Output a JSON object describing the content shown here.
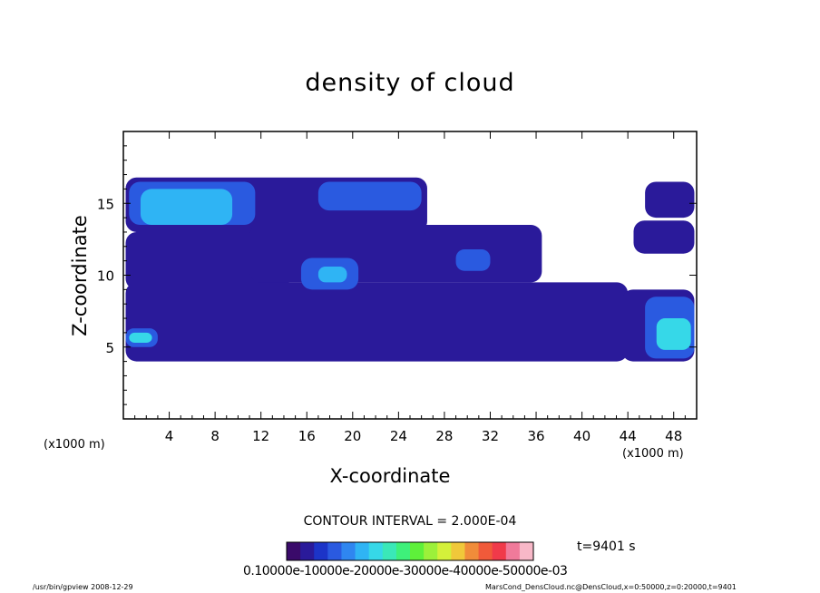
{
  "chart_data": {
    "type": "heatmap",
    "title": "density of cloud",
    "xlabel": "X-coordinate",
    "ylabel": "Z-coordinate",
    "x_unit_label": "(x1000 m)",
    "x_ticks": [
      4,
      8,
      12,
      16,
      20,
      24,
      28,
      32,
      36,
      40,
      44,
      48
    ],
    "y_ticks": [
      5,
      10,
      15
    ],
    "xlim": [
      0,
      50
    ],
    "ylim": [
      0,
      20
    ],
    "contour_interval": "CONTOUR INTERVAL = 2.000E-04",
    "time": "t=9401 s",
    "colorbar": {
      "labels_text": "0.10000e-10000e-20000e-30000e-40000e-50000e-03",
      "colors": [
        "#3a0a6a",
        "#2a1a9a",
        "#1c34c8",
        "#2a5ae0",
        "#2f86f0",
        "#2fb4f4",
        "#36d8e8",
        "#3ae8b8",
        "#3ef07a",
        "#5ef03a",
        "#9cf03a",
        "#d4f03a",
        "#f0c83a",
        "#f08c3a",
        "#f05a3a",
        "#f03a4a",
        "#f07a9a",
        "#f8b8c8"
      ]
    },
    "regions": [
      {
        "level": 1,
        "x": [
          0.2,
          26.5
        ],
        "z": [
          13.0,
          16.8
        ]
      },
      {
        "level": 1,
        "x": [
          0.2,
          14.5
        ],
        "z": [
          9.0,
          13.0
        ]
      },
      {
        "level": 1,
        "x": [
          11.0,
          36.5
        ],
        "z": [
          9.5,
          13.5
        ]
      },
      {
        "level": 1,
        "x": [
          0.2,
          44.0
        ],
        "z": [
          4.0,
          9.5
        ]
      },
      {
        "level": 1,
        "x": [
          43.5,
          49.8
        ],
        "z": [
          4.0,
          9.0
        ]
      },
      {
        "level": 1,
        "x": [
          44.5,
          49.8
        ],
        "z": [
          11.5,
          13.8
        ]
      },
      {
        "level": 1,
        "x": [
          45.5,
          49.8
        ],
        "z": [
          14.0,
          16.5
        ]
      },
      {
        "level": 3,
        "x": [
          0.5,
          11.5
        ],
        "z": [
          13.5,
          16.5
        ]
      },
      {
        "level": 3,
        "x": [
          15.5,
          20.5
        ],
        "z": [
          9.0,
          11.2
        ]
      },
      {
        "level": 3,
        "x": [
          17.0,
          26.0
        ],
        "z": [
          14.5,
          16.5
        ]
      },
      {
        "level": 3,
        "x": [
          29.0,
          32.0
        ],
        "z": [
          10.3,
          11.8
        ]
      },
      {
        "level": 3,
        "x": [
          45.5,
          49.8
        ],
        "z": [
          4.2,
          8.5
        ]
      },
      {
        "level": 3,
        "x": [
          0.2,
          3.0
        ],
        "z": [
          5.0,
          6.3
        ]
      },
      {
        "level": 5,
        "x": [
          1.5,
          9.5
        ],
        "z": [
          13.5,
          16.0
        ]
      },
      {
        "level": 5,
        "x": [
          17.0,
          19.5
        ],
        "z": [
          9.5,
          10.6
        ]
      },
      {
        "level": 6,
        "x": [
          46.5,
          49.5
        ],
        "z": [
          4.8,
          7.0
        ]
      },
      {
        "level": 6,
        "x": [
          0.5,
          2.5
        ],
        "z": [
          5.3,
          6.0
        ]
      }
    ]
  },
  "footer": {
    "left": "/usr/bin/gpview  2008-12-29",
    "right": "MarsCond_DensCloud.nc@DensCloud,x=0:50000,z=0:20000,t=9401"
  }
}
